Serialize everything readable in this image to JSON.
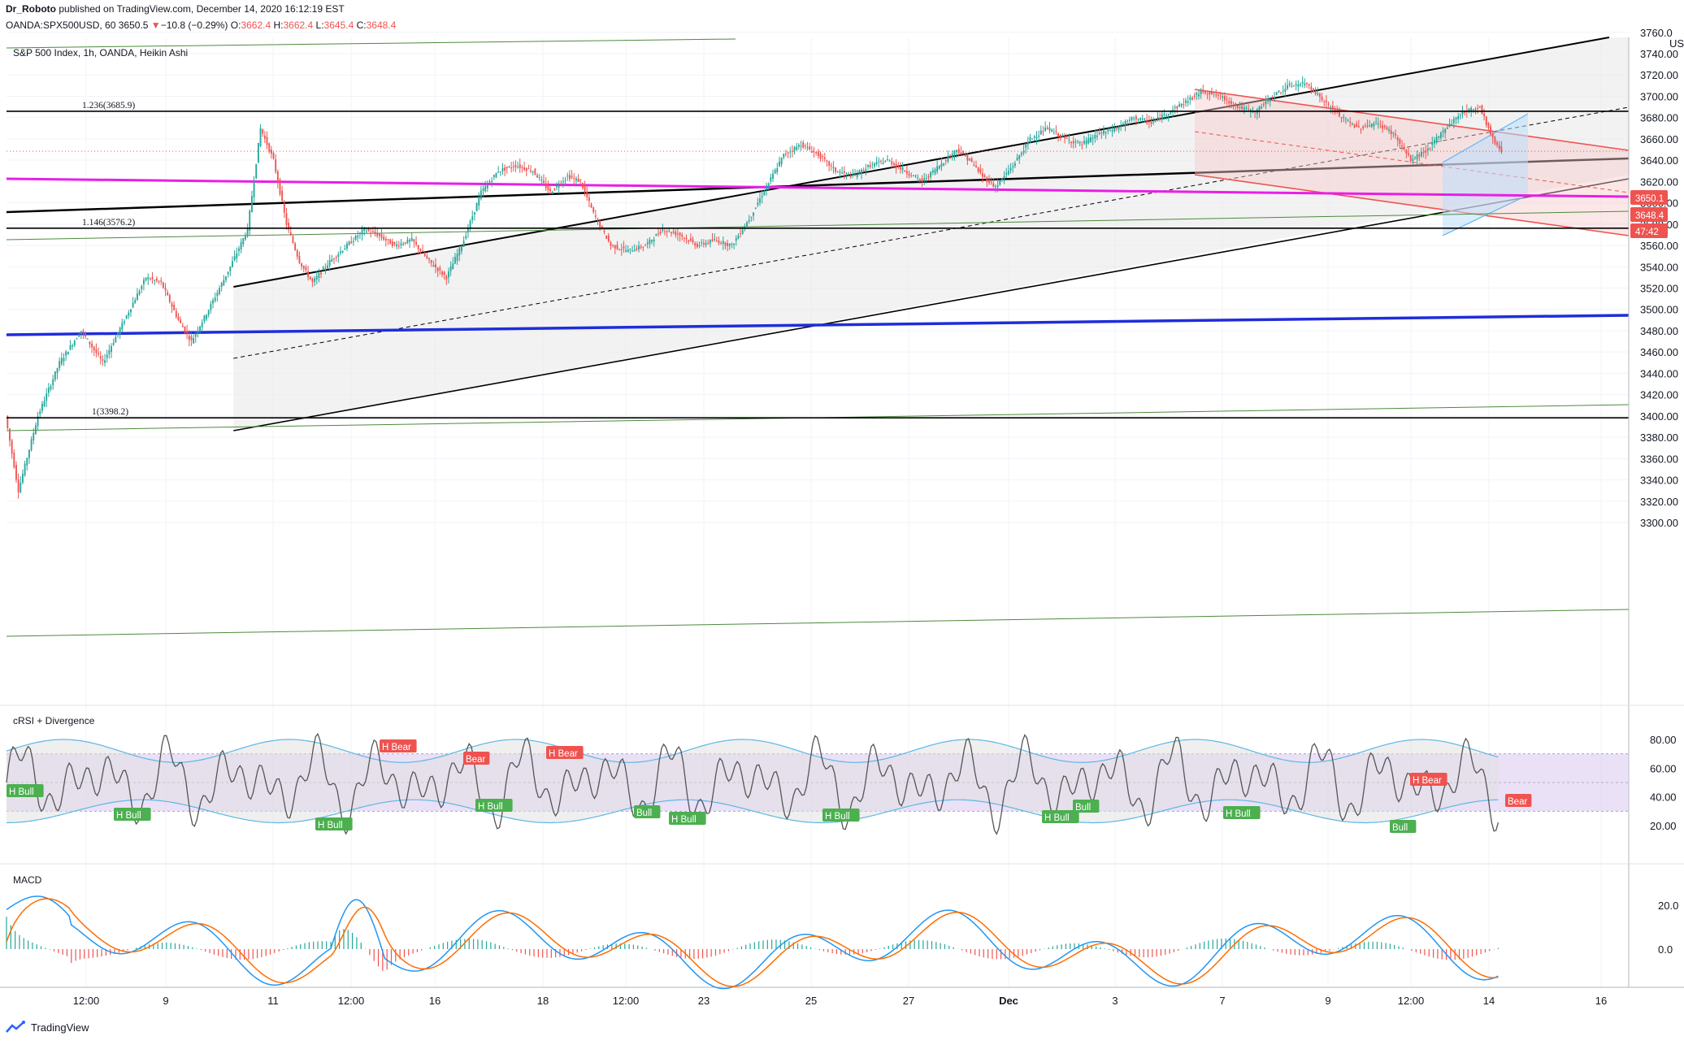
{
  "header": {
    "author": "Dr_Roboto",
    "published_text": "published on TradingView.com, December 14, 2020 16:12:19 EST",
    "symbol": "OANDA:SPX500USD, 60",
    "last": "3650.5",
    "change_arrow": "▼",
    "change": "−10.8 (−0.29%)",
    "o_label": "O:",
    "o_value": "3662.4",
    "h_label": "H:",
    "h_value": "3662.4",
    "l_label": "L:",
    "l_value": "3645.4",
    "c_label": "C:",
    "c_value": "3648.4"
  },
  "main_pane": {
    "title": "S&P 500 Index, 1h, OANDA, Heikin Ashi",
    "currency": "USD",
    "price_ticks": [
      "3760.0",
      "3740.00",
      "3720.00",
      "3700.00",
      "3680.00",
      "3660.00",
      "3640.00",
      "3620.00",
      "3600.00",
      "3580.00",
      "3560.00",
      "3540.00",
      "3520.00",
      "3500.00",
      "3480.00",
      "3460.00",
      "3440.00",
      "3420.00",
      "3400.00",
      "3380.00",
      "3360.00",
      "3340.00",
      "3320.00",
      "3300.00"
    ],
    "price_tags": [
      {
        "label": "3650.1",
        "value": 3650.1,
        "color": "#ef5350"
      },
      {
        "label": "3648.4",
        "value": 3648.4,
        "color": "#ef5350"
      },
      {
        "label": "47:42",
        "value": null,
        "color": "#ef5350"
      }
    ],
    "fib_levels": [
      {
        "label": "1.236(3685.9)",
        "value": 3685.9
      },
      {
        "label": "1.146(3576.2)",
        "value": 3576.2
      },
      {
        "label": "1(3398.2)",
        "value": 3398.2
      }
    ]
  },
  "rsi_pane": {
    "title": "cRSI + Divergence",
    "ticks": [
      "80.00",
      "60.00",
      "40.00",
      "20.00"
    ],
    "divergence_labels": [
      {
        "text": "H Bull",
        "kind": "bull"
      },
      {
        "text": "H Bull",
        "kind": "bull"
      },
      {
        "text": "H Bull",
        "kind": "bull"
      },
      {
        "text": "H Bear",
        "kind": "bear"
      },
      {
        "text": "Bear",
        "kind": "bear"
      },
      {
        "text": "H Bull",
        "kind": "bull"
      },
      {
        "text": "H Bear",
        "kind": "bear"
      },
      {
        "text": "Bull",
        "kind": "bull"
      },
      {
        "text": "H Bull",
        "kind": "bull"
      },
      {
        "text": "H Bull",
        "kind": "bull"
      },
      {
        "text": "H Bull",
        "kind": "bull"
      },
      {
        "text": "Bull",
        "kind": "bull"
      },
      {
        "text": "H Bull",
        "kind": "bull"
      },
      {
        "text": "H Bear",
        "kind": "bear"
      },
      {
        "text": "Bull",
        "kind": "bull"
      },
      {
        "text": "Bear",
        "kind": "bear"
      }
    ]
  },
  "macd_pane": {
    "title": "MACD",
    "ticks": [
      "20.0",
      "0.0"
    ]
  },
  "time_axis": [
    "12:00",
    "9",
    "11",
    "12:00",
    "16",
    "18",
    "12:00",
    "23",
    "25",
    "27",
    "Dec",
    "3",
    "7",
    "9",
    "12:00",
    "14",
    "16"
  ],
  "footer": {
    "brand": "TradingView"
  },
  "colors": {
    "up": "#26a69a",
    "down": "#ef5350",
    "magenta": "#e91ee6",
    "blue": "#1f2ddb",
    "channel": "#000000",
    "green_line": "#4c8a3c",
    "rsi_band": "#d9c8f0",
    "rsi_line": "#555555",
    "rsi_envelope": "#5cb7e6",
    "macd": "#2196f3",
    "signal": "#ff6d00"
  },
  "chart_data": [
    {
      "type": "candlestick",
      "title": "S&P 500 Index, 1h, OANDA, Heikin Ashi",
      "ylim": [
        3300,
        3760
      ],
      "x_tick_labels": [
        "12:00",
        "9",
        "11",
        "12:00",
        "16",
        "18",
        "12:00",
        "23",
        "25",
        "27",
        "Dec",
        "3",
        "7",
        "9",
        "12:00",
        "14",
        "16"
      ],
      "price_path": [
        [
          0,
          3400
        ],
        [
          6,
          3330
        ],
        [
          15,
          3400
        ],
        [
          25,
          3450
        ],
        [
          35,
          3480
        ],
        [
          45,
          3450
        ],
        [
          55,
          3490
        ],
        [
          65,
          3530
        ],
        [
          72,
          3525
        ],
        [
          80,
          3490
        ],
        [
          86,
          3470
        ],
        [
          94,
          3500
        ],
        [
          104,
          3540
        ],
        [
          112,
          3575
        ],
        [
          118,
          3670
        ],
        [
          124,
          3640
        ],
        [
          130,
          3580
        ],
        [
          136,
          3545
        ],
        [
          142,
          3525
        ],
        [
          150,
          3545
        ],
        [
          158,
          3560
        ],
        [
          166,
          3575
        ],
        [
          172,
          3570
        ],
        [
          180,
          3560
        ],
        [
          188,
          3565
        ],
        [
          196,
          3545
        ],
        [
          204,
          3530
        ],
        [
          212,
          3565
        ],
        [
          220,
          3610
        ],
        [
          228,
          3630
        ],
        [
          236,
          3635
        ],
        [
          244,
          3630
        ],
        [
          252,
          3610
        ],
        [
          260,
          3625
        ],
        [
          266,
          3620
        ],
        [
          272,
          3590
        ],
        [
          280,
          3560
        ],
        [
          288,
          3555
        ],
        [
          296,
          3560
        ],
        [
          304,
          3575
        ],
        [
          312,
          3570
        ],
        [
          320,
          3560
        ],
        [
          328,
          3565
        ],
        [
          336,
          3560
        ],
        [
          344,
          3585
        ],
        [
          352,
          3615
        ],
        [
          360,
          3645
        ],
        [
          368,
          3655
        ],
        [
          376,
          3645
        ],
        [
          384,
          3630
        ],
        [
          392,
          3625
        ],
        [
          400,
          3635
        ],
        [
          408,
          3640
        ],
        [
          416,
          3630
        ],
        [
          424,
          3620
        ],
        [
          432,
          3635
        ],
        [
          440,
          3650
        ],
        [
          446,
          3640
        ],
        [
          452,
          3625
        ],
        [
          458,
          3615
        ],
        [
          466,
          3635
        ],
        [
          474,
          3660
        ],
        [
          482,
          3670
        ],
        [
          490,
          3660
        ],
        [
          498,
          3655
        ],
        [
          506,
          3665
        ],
        [
          514,
          3670
        ],
        [
          522,
          3680
        ],
        [
          530,
          3675
        ],
        [
          538,
          3685
        ],
        [
          546,
          3695
        ],
        [
          554,
          3705
        ],
        [
          562,
          3700
        ],
        [
          570,
          3690
        ],
        [
          578,
          3685
        ],
        [
          586,
          3700
        ],
        [
          594,
          3710
        ],
        [
          602,
          3712
        ],
        [
          610,
          3695
        ],
        [
          618,
          3680
        ],
        [
          626,
          3670
        ],
        [
          634,
          3675
        ],
        [
          642,
          3665
        ],
        [
          650,
          3640
        ],
        [
          658,
          3650
        ],
        [
          666,
          3670
        ],
        [
          674,
          3685
        ],
        [
          682,
          3690
        ],
        [
          688,
          3660
        ],
        [
          692,
          3648
        ]
      ],
      "lines": [
        {
          "name": "1.236(3685.9)",
          "y": 3685.9
        },
        {
          "name": "1.146(3576.2)",
          "y": 3576.2
        },
        {
          "name": "1(3398.2)",
          "y": 3398.2
        }
      ]
    },
    {
      "type": "line",
      "title": "cRSI + Divergence",
      "ylim": [
        10,
        90
      ],
      "band": [
        30,
        70
      ]
    },
    {
      "type": "line",
      "title": "MACD",
      "ylim": [
        -20,
        40
      ]
    }
  ]
}
